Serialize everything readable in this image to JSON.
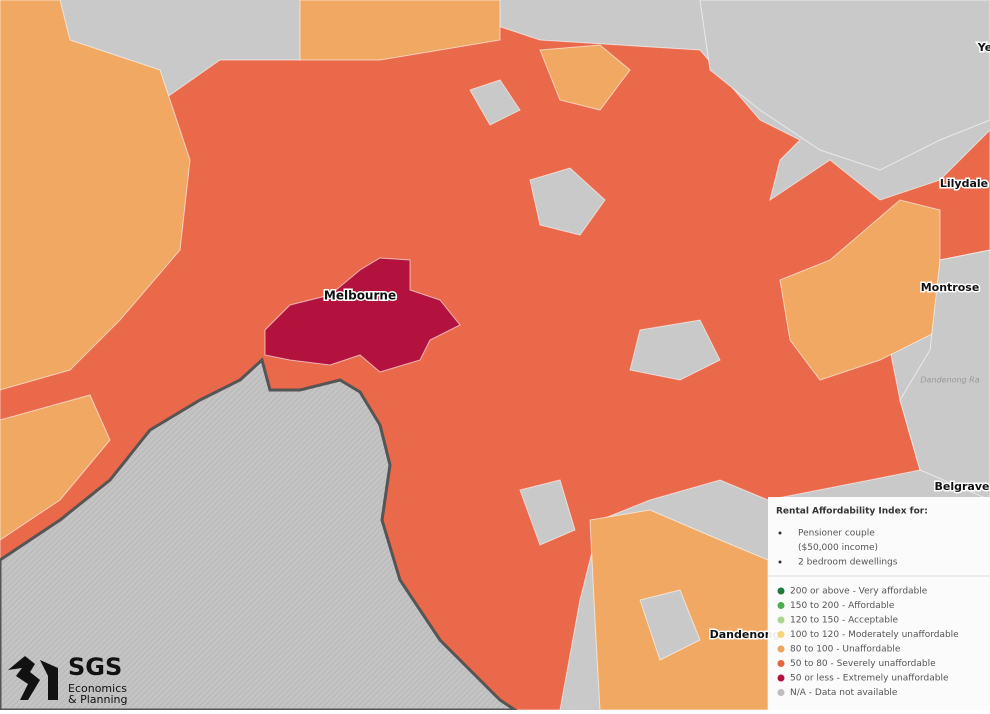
{
  "map": {
    "place_labels": [
      {
        "text": "Melbourne",
        "style": "city"
      },
      {
        "text": "Montrose",
        "style": "town"
      },
      {
        "text": "Lilydale",
        "style": "town"
      },
      {
        "text": "Belgrave",
        "style": "town"
      },
      {
        "text": "Dandenong",
        "style": "town"
      },
      {
        "text": "Ye",
        "style": "town"
      },
      {
        "text": "Dandenong Ra",
        "style": "feature"
      }
    ]
  },
  "legend": {
    "title": "Rental Affordability Index for:",
    "criteria": [
      "Pensioner couple",
      "($50,000 income)",
      "2 bedroom dewellings"
    ],
    "items": [
      {
        "label": "200 or above - Very affordable",
        "color": "#1e7b3c"
      },
      {
        "label": "150 to 200 - Affordable",
        "color": "#4cae4f"
      },
      {
        "label": "120 to 150 - Acceptable",
        "color": "#a8d88c"
      },
      {
        "label": "100 to 120 - Moderately unaffordable",
        "color": "#f4d57c"
      },
      {
        "label": "80 to 100 - Unaffordable",
        "color": "#f0a35c"
      },
      {
        "label": "50 to 80 - Severely unaffordable",
        "color": "#e8633e"
      },
      {
        "label": "50 or less - Extremely unaffordable",
        "color": "#b3123f"
      },
      {
        "label": "N/A - Data not available",
        "color": "#bdbdbd"
      }
    ]
  },
  "logo": {
    "name": "SGS",
    "line1": "Economics",
    "line2": "& Planning"
  }
}
